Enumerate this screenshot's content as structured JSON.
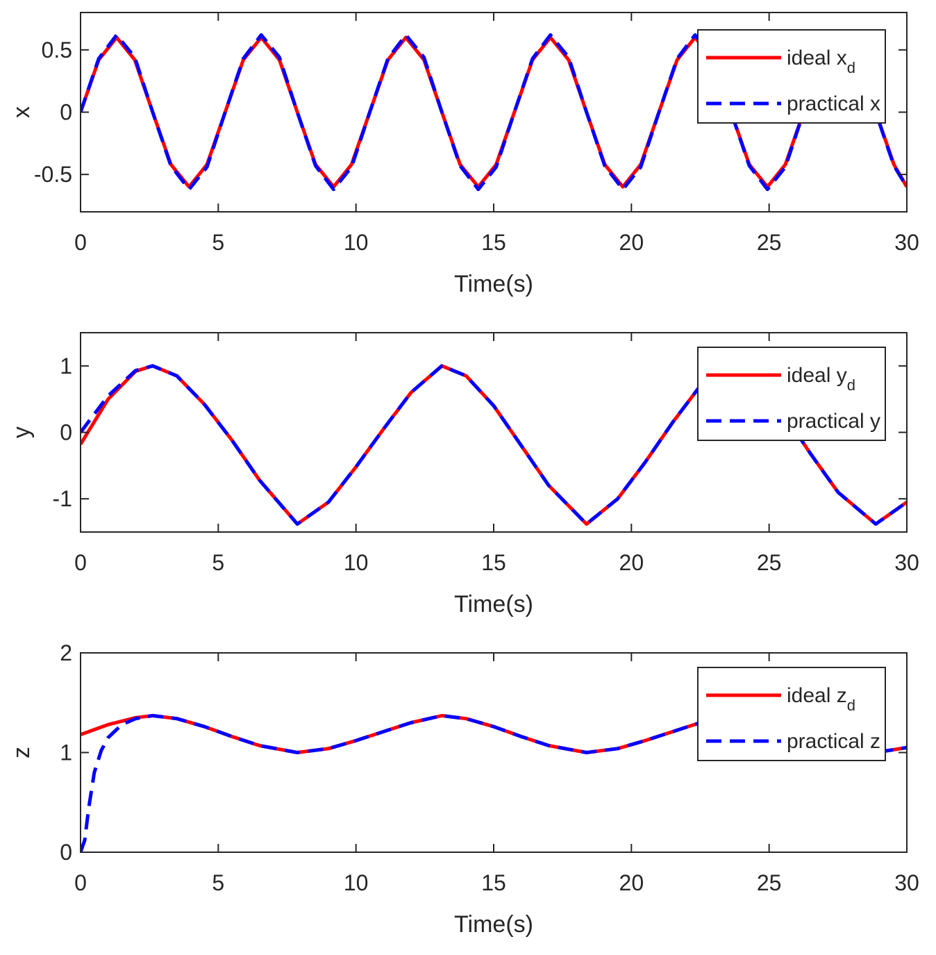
{
  "chart_data": [
    {
      "type": "line",
      "xlabel": "Time(s)",
      "ylabel": "x",
      "xlim": [
        0,
        30
      ],
      "ylim": [
        -0.8,
        0.8
      ],
      "xticks": [
        "0",
        "5",
        "10",
        "15",
        "20",
        "25",
        "30"
      ],
      "yticks": [
        "-0.5",
        "0",
        "0.5"
      ],
      "ytick_values": [
        -0.5,
        0,
        0.5
      ],
      "legend_position": "top-right",
      "grid": false,
      "legend": [
        {
          "text": "ideal x",
          "sub": "d"
        },
        {
          "text": "practical x",
          "sub": ""
        }
      ],
      "series": [
        {
          "name": "ideal x_d",
          "color": "#ff0000",
          "style": "solid",
          "x": [
            0,
            0.66,
            1.31,
            1.97,
            2.62,
            3.28,
            3.94,
            4.59,
            5.25,
            5.91,
            6.56,
            7.22,
            7.87,
            8.53,
            9.19,
            9.84,
            10.5,
            11.16,
            11.81,
            12.47,
            13.12,
            13.78,
            14.44,
            15.09,
            15.75,
            16.41,
            17.06,
            17.72,
            18.37,
            19.03,
            19.69,
            20.34,
            21.0,
            21.66,
            22.31,
            22.97,
            23.62,
            24.28,
            24.94,
            25.59,
            26.25,
            26.91,
            27.56,
            28.22,
            28.87,
            29.53,
            30
          ],
          "y": [
            0,
            0.42,
            0.6,
            0.42,
            0,
            -0.42,
            -0.6,
            -0.42,
            0,
            0.42,
            0.6,
            0.42,
            0,
            -0.42,
            -0.6,
            -0.42,
            0,
            0.42,
            0.6,
            0.42,
            0,
            -0.42,
            -0.6,
            -0.42,
            0,
            0.42,
            0.6,
            0.42,
            0,
            -0.42,
            -0.6,
            -0.42,
            0,
            0.42,
            0.6,
            0.42,
            0,
            -0.42,
            -0.6,
            -0.42,
            0,
            0.42,
            0.6,
            0.42,
            0,
            -0.42,
            -0.6
          ]
        },
        {
          "name": "practical x",
          "color": "#0000ff",
          "style": "dashed",
          "x": [
            0,
            0.66,
            1.31,
            1.97,
            2.62,
            3.28,
            3.94,
            4.59,
            5.25,
            5.91,
            6.56,
            7.22,
            7.87,
            8.53,
            9.19,
            9.84,
            10.5,
            11.16,
            11.81,
            12.47,
            13.12,
            13.78,
            14.44,
            15.09,
            15.75,
            16.41,
            17.06,
            17.72,
            18.37,
            19.03,
            19.69,
            20.34,
            21.0,
            21.66,
            22.31,
            22.97,
            23.62,
            24.28,
            24.94,
            25.59,
            26.25,
            26.91,
            27.56,
            28.22,
            28.87,
            29.53,
            30
          ],
          "y": [
            0,
            0.43,
            0.62,
            0.44,
            0,
            -0.43,
            -0.62,
            -0.44,
            0,
            0.43,
            0.62,
            0.44,
            0,
            -0.43,
            -0.62,
            -0.44,
            0,
            0.43,
            0.62,
            0.44,
            0,
            -0.43,
            -0.62,
            -0.44,
            0,
            0.43,
            0.62,
            0.44,
            0,
            -0.43,
            -0.62,
            -0.44,
            0,
            0.43,
            0.62,
            0.44,
            0,
            -0.43,
            -0.62,
            -0.44,
            0,
            0.43,
            0.62,
            0.44,
            0,
            -0.43,
            -0.6
          ]
        }
      ]
    },
    {
      "type": "line",
      "xlabel": "Time(s)",
      "ylabel": "y",
      "xlim": [
        0,
        30
      ],
      "ylim": [
        -1.5,
        1.5
      ],
      "xticks": [
        "0",
        "5",
        "10",
        "15",
        "20",
        "25",
        "30"
      ],
      "yticks": [
        "-1",
        "0",
        "1"
      ],
      "ytick_values": [
        -1,
        0,
        1
      ],
      "legend_position": "top-right",
      "grid": false,
      "legend": [
        {
          "text": "ideal y",
          "sub": "d"
        },
        {
          "text": "practical y",
          "sub": ""
        }
      ],
      "series": [
        {
          "name": "ideal y_d",
          "color": "#ff0000",
          "style": "solid",
          "x": [
            0,
            1,
            2,
            2.62,
            3.5,
            4.5,
            5.5,
            6.5,
            7.87,
            9,
            10,
            11,
            12,
            13.12,
            14,
            15,
            16,
            17,
            18.37,
            19.5,
            20.5,
            21.5,
            22.5,
            23.62,
            24.5,
            25.5,
            26.5,
            27.5,
            28.87,
            30
          ],
          "y": [
            -0.18,
            0.5,
            0.92,
            1.0,
            0.85,
            0.42,
            -0.12,
            -0.72,
            -1.38,
            -1.05,
            -0.52,
            0.05,
            0.6,
            1.0,
            0.85,
            0.4,
            -0.2,
            -0.8,
            -1.38,
            -1.0,
            -0.45,
            0.15,
            0.7,
            1.0,
            0.82,
            0.3,
            -0.32,
            -0.9,
            -1.38,
            -1.05
          ]
        },
        {
          "name": "practical y",
          "color": "#0000ff",
          "style": "dashed",
          "x": [
            0,
            1,
            2,
            2.62,
            3.5,
            4.5,
            5.5,
            6.5,
            7.87,
            9,
            10,
            11,
            12,
            13.12,
            14,
            15,
            16,
            17,
            18.37,
            19.5,
            20.5,
            21.5,
            22.5,
            23.62,
            24.5,
            25.5,
            26.5,
            27.5,
            28.87,
            30
          ],
          "y": [
            0,
            0.55,
            0.93,
            1.0,
            0.85,
            0.42,
            -0.12,
            -0.72,
            -1.38,
            -1.05,
            -0.52,
            0.05,
            0.6,
            1.0,
            0.85,
            0.4,
            -0.2,
            -0.8,
            -1.38,
            -1.0,
            -0.45,
            0.15,
            0.7,
            1.0,
            0.82,
            0.3,
            -0.32,
            -0.9,
            -1.38,
            -1.05
          ]
        }
      ]
    },
    {
      "type": "line",
      "xlabel": "Time(s)",
      "ylabel": "z",
      "xlim": [
        0,
        30
      ],
      "ylim": [
        0,
        2
      ],
      "xticks": [
        "0",
        "5",
        "10",
        "15",
        "20",
        "25",
        "30"
      ],
      "yticks": [
        "0",
        "1",
        "2"
      ],
      "ytick_values": [
        0,
        1,
        2
      ],
      "legend_position": "top-right",
      "grid": false,
      "legend": [
        {
          "text": "ideal z",
          "sub": "d"
        },
        {
          "text": "practical z",
          "sub": ""
        }
      ],
      "series": [
        {
          "name": "ideal z_d",
          "color": "#ff0000",
          "style": "solid",
          "x": [
            0,
            1,
            2,
            2.62,
            3.5,
            4.5,
            5.5,
            6.5,
            7.87,
            9,
            10,
            11,
            12,
            13.12,
            14,
            15,
            16,
            17,
            18.37,
            19.5,
            20.5,
            21.5,
            22.5,
            23.62,
            24.5,
            25.5,
            26.5,
            27.5,
            28.87,
            30
          ],
          "y": [
            1.18,
            1.28,
            1.35,
            1.37,
            1.34,
            1.26,
            1.16,
            1.07,
            1.0,
            1.04,
            1.12,
            1.21,
            1.3,
            1.37,
            1.34,
            1.26,
            1.16,
            1.07,
            1.0,
            1.04,
            1.12,
            1.21,
            1.3,
            1.37,
            1.34,
            1.26,
            1.16,
            1.07,
            1.0,
            1.05
          ]
        },
        {
          "name": "practical z",
          "color": "#0000ff",
          "style": "dashed",
          "x": [
            0,
            0.15,
            0.3,
            0.5,
            0.75,
            1,
            1.5,
            2,
            2.62,
            3.5,
            4.5,
            5.5,
            6.5,
            7.87,
            9,
            10,
            11,
            12,
            13.12,
            14,
            15,
            16,
            17,
            18.37,
            19.5,
            20.5,
            21.5,
            22.5,
            23.62,
            24.5,
            25.5,
            26.5,
            27.5,
            28.87,
            30
          ],
          "y": [
            0,
            0.12,
            0.45,
            0.8,
            1.02,
            1.15,
            1.28,
            1.34,
            1.37,
            1.34,
            1.26,
            1.16,
            1.07,
            1.0,
            1.04,
            1.12,
            1.21,
            1.3,
            1.37,
            1.34,
            1.26,
            1.16,
            1.07,
            1.0,
            1.04,
            1.12,
            1.21,
            1.3,
            1.37,
            1.34,
            1.26,
            1.16,
            1.07,
            1.0,
            1.05
          ]
        }
      ]
    }
  ]
}
